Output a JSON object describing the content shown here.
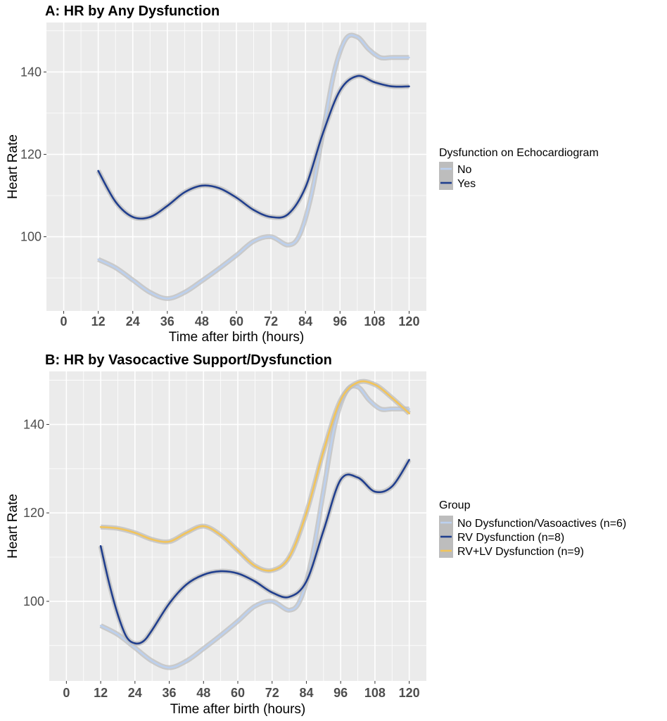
{
  "colors": {
    "no": "#bcd0ee",
    "yes": "#213f8e",
    "rvlv": "#f2c45a",
    "panel": "#ebebeb",
    "grid": "#ffffff",
    "band": "#bdbdbd"
  },
  "chart_data": [
    {
      "type": "line",
      "title": "A: HR by Any Dysfunction",
      "xlabel": "Time after birth (hours)",
      "ylabel": "Heart Rate",
      "x_ticks": [
        0,
        12,
        24,
        36,
        48,
        60,
        72,
        84,
        96,
        108,
        120
      ],
      "y_ticks": [
        100,
        120,
        140
      ],
      "xlim": [
        -6,
        126
      ],
      "ylim": [
        82,
        152
      ],
      "grid": true,
      "legend_title": "Dysfunction on Echocardiogram",
      "legend_position": "right",
      "series": [
        {
          "name": "No",
          "color": "#bcd0ee",
          "x": [
            12,
            18,
            24,
            30,
            36,
            42,
            48,
            54,
            60,
            66,
            72,
            78,
            82,
            86,
            90,
            94,
            98,
            102,
            106,
            110,
            114,
            120
          ],
          "values": [
            94.5,
            92.5,
            89.5,
            86.5,
            85,
            86.5,
            89.3,
            92.3,
            95.5,
            98.9,
            100,
            98,
            100.5,
            110,
            125,
            140,
            148,
            148.5,
            145.5,
            143.5,
            143.5,
            143.5
          ]
        },
        {
          "name": "Yes",
          "color": "#213f8e",
          "x": [
            12,
            18,
            24,
            30,
            36,
            42,
            48,
            54,
            60,
            66,
            72,
            78,
            84,
            90,
            96,
            102,
            108,
            114,
            120
          ],
          "values": [
            116,
            108.5,
            104.8,
            104.8,
            107.5,
            110.8,
            112.4,
            111.8,
            109.5,
            106.5,
            104.8,
            105.5,
            112,
            125,
            135.5,
            139,
            137.5,
            136.5,
            136.5
          ]
        }
      ]
    },
    {
      "type": "line",
      "title": "B: HR by Vasocactive Support/Dysfunction",
      "xlabel": "Time after birth (hours)",
      "ylabel": "Heart Rate",
      "x_ticks": [
        0,
        12,
        24,
        36,
        48,
        60,
        72,
        84,
        96,
        108,
        120
      ],
      "y_ticks": [
        100,
        120,
        140
      ],
      "xlim": [
        -6,
        126
      ],
      "ylim": [
        82,
        152
      ],
      "grid": true,
      "legend_title": "Group",
      "legend_position": "right",
      "series": [
        {
          "name": "No Dysfunction/Vasoactives (n=6)",
          "color": "#bcd0ee",
          "x": [
            12,
            18,
            24,
            30,
            36,
            42,
            48,
            54,
            60,
            66,
            72,
            78,
            82,
            86,
            90,
            94,
            98,
            102,
            106,
            110,
            114,
            120
          ],
          "values": [
            94.5,
            92.5,
            89.5,
            86.5,
            85,
            86.5,
            89.3,
            92.3,
            95.5,
            98.9,
            100,
            98,
            100.5,
            110,
            125,
            140,
            147.5,
            148.5,
            145.5,
            143.5,
            143.5,
            143.5
          ]
        },
        {
          "name": "RV Dysfunction (n=8)",
          "color": "#213f8e",
          "x": [
            12,
            15,
            18,
            21,
            24,
            27,
            30,
            36,
            42,
            48,
            54,
            60,
            66,
            72,
            78,
            84,
            90,
            96,
            102,
            108,
            114,
            120
          ],
          "values": [
            112.5,
            104,
            97,
            92,
            90.5,
            91,
            93.5,
            99.5,
            103.8,
            106,
            106.8,
            106.3,
            104.5,
            102,
            101,
            104.5,
            116,
            127.5,
            128,
            124.8,
            126,
            132
          ]
        },
        {
          "name": "RV+LV Dysfunction (n=9)",
          "color": "#f2c45a",
          "x": [
            12,
            18,
            24,
            30,
            36,
            42,
            48,
            54,
            60,
            66,
            72,
            78,
            84,
            90,
            96,
            102,
            108,
            114,
            120
          ],
          "values": [
            116.8,
            116.5,
            115.5,
            114,
            113.5,
            115.5,
            117,
            115,
            111.5,
            108,
            107,
            110,
            120,
            134,
            145.5,
            149.5,
            149,
            146,
            142.5
          ]
        }
      ]
    }
  ]
}
